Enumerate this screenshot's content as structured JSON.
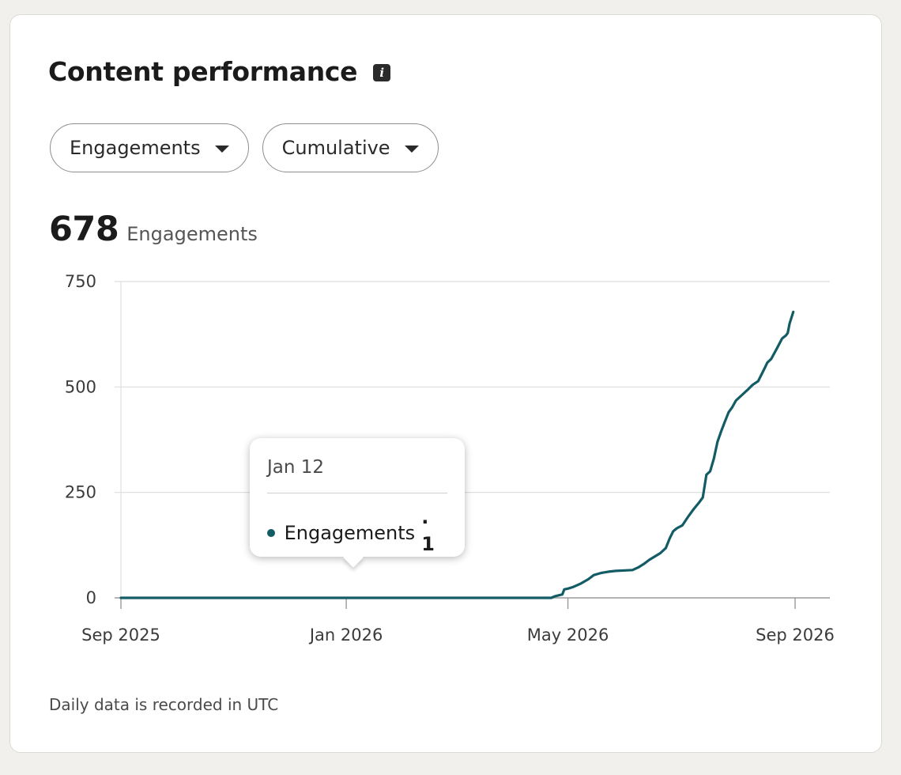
{
  "header": {
    "title": "Content performance",
    "info_icon": "info-icon"
  },
  "filters": [
    {
      "label": "Engagements"
    },
    {
      "label": "Cumulative"
    }
  ],
  "summary": {
    "value": "678",
    "label": "Engagements"
  },
  "tooltip": {
    "date": "Jan 12",
    "series": "Engagements",
    "value": "· 1",
    "dot_color": "#135c66"
  },
  "footnote": "Daily data is recorded in UTC",
  "chart_data": {
    "type": "line",
    "title": "",
    "xlabel": "",
    "ylabel": "",
    "ylim": [
      0,
      750
    ],
    "yticks": [
      0,
      250,
      500,
      750
    ],
    "ytick_labels": [
      "0",
      "250",
      "500",
      "750"
    ],
    "xlim": [
      "2025-09-01",
      "2026-09-01"
    ],
    "xticks": [
      "2025-09-01",
      "2026-01-01",
      "2026-05-01",
      "2026-09-01"
    ],
    "xtick_labels": [
      "Sep 2025",
      "Jan 2026",
      "May 2026",
      "Sep 2026"
    ],
    "grid": true,
    "line_color": "#135c66",
    "series": [
      {
        "name": "Engagements",
        "points": [
          [
            "2025-09-01",
            0
          ],
          [
            "2026-04-22",
            0
          ],
          [
            "2026-04-24",
            4
          ],
          [
            "2026-04-26",
            6
          ],
          [
            "2026-04-28",
            8
          ],
          [
            "2026-04-29",
            20
          ],
          [
            "2026-05-01",
            22
          ],
          [
            "2026-05-04",
            26
          ],
          [
            "2026-05-08",
            34
          ],
          [
            "2026-05-12",
            44
          ],
          [
            "2026-05-15",
            54
          ],
          [
            "2026-05-19",
            59
          ],
          [
            "2026-05-23",
            62
          ],
          [
            "2026-05-27",
            64
          ],
          [
            "2026-06-01",
            65
          ],
          [
            "2026-06-05",
            66
          ],
          [
            "2026-06-08",
            72
          ],
          [
            "2026-06-11",
            80
          ],
          [
            "2026-06-14",
            90
          ],
          [
            "2026-06-17",
            98
          ],
          [
            "2026-06-20",
            106
          ],
          [
            "2026-06-23",
            118
          ],
          [
            "2026-06-25",
            140
          ],
          [
            "2026-06-27",
            158
          ],
          [
            "2026-06-29",
            165
          ],
          [
            "2026-07-02",
            172
          ],
          [
            "2026-07-05",
            192
          ],
          [
            "2026-07-08",
            210
          ],
          [
            "2026-07-11",
            226
          ],
          [
            "2026-07-13",
            238
          ],
          [
            "2026-07-15",
            292
          ],
          [
            "2026-07-17",
            300
          ],
          [
            "2026-07-19",
            330
          ],
          [
            "2026-07-21",
            370
          ],
          [
            "2026-07-23",
            395
          ],
          [
            "2026-07-25",
            418
          ],
          [
            "2026-07-27",
            440
          ],
          [
            "2026-07-29",
            452
          ],
          [
            "2026-07-31",
            468
          ],
          [
            "2026-08-03",
            480
          ],
          [
            "2026-08-06",
            492
          ],
          [
            "2026-08-09",
            505
          ],
          [
            "2026-08-12",
            514
          ],
          [
            "2026-08-15",
            540
          ],
          [
            "2026-08-17",
            558
          ],
          [
            "2026-08-19",
            566
          ],
          [
            "2026-08-22",
            590
          ],
          [
            "2026-08-25",
            615
          ],
          [
            "2026-08-27",
            622
          ],
          [
            "2026-08-28",
            628
          ],
          [
            "2026-08-29",
            650
          ],
          [
            "2026-08-31",
            678
          ]
        ]
      }
    ]
  }
}
